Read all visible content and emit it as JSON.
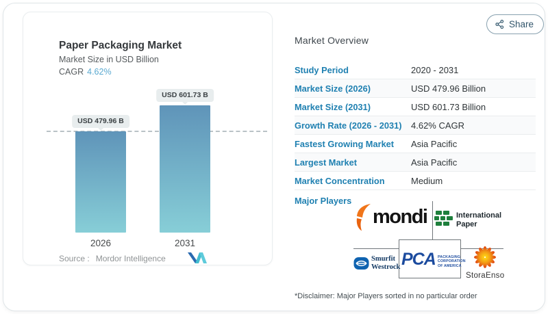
{
  "share": {
    "label": "Share"
  },
  "chart_card": {
    "title": "Paper Packaging Market",
    "subtitle": "Market Size in USD Billion",
    "cagr_label": "CAGR",
    "cagr_value": "4.62%",
    "source_label": "Source :",
    "source_value": "Mordor Intelligence"
  },
  "chart_data": {
    "type": "bar",
    "categories": [
      "2026",
      "2031"
    ],
    "values": [
      479.96,
      601.73
    ],
    "value_labels": [
      "USD 479.96 B",
      "USD 601.73 B"
    ],
    "title": "Paper Packaging Market",
    "subtitle": "Market Size in USD Billion",
    "cagr": "4.62%",
    "unit": "USD Billion",
    "ylim": [
      0,
      620
    ],
    "grid": false,
    "reference_line": {
      "style": "dashed",
      "value": 479.96
    },
    "bar_gradient": [
      "#5f94b9",
      "#87ced7"
    ]
  },
  "overview": {
    "title": "Market Overview",
    "rows": [
      {
        "label": "Study Period",
        "value": "2020 - 2031"
      },
      {
        "label": "Market Size (2026)",
        "value": "USD 479.96 Billion"
      },
      {
        "label": "Market Size (2031)",
        "value": "USD 601.73 Billion"
      },
      {
        "label": "Growth Rate (2026 - 2031)",
        "value": "4.62% CAGR"
      },
      {
        "label": "Fastest Growing Market",
        "value": "Asia Pacific"
      },
      {
        "label": "Largest Market",
        "value": "Asia Pacific"
      },
      {
        "label": "Market Concentration",
        "value": "Medium"
      }
    ],
    "major_players_label": "Major Players",
    "disclaimer": "*Disclaimer: Major Players sorted in no particular order",
    "players": {
      "mondi": "mondi",
      "ip_line1": "International",
      "ip_line2": "Paper",
      "sw_line1": "Smurfit",
      "sw_line2": "Westrock",
      "pca": "PCA",
      "pca_sub1": "PACKAGING",
      "pca_sub2": "CORPORATION",
      "pca_sub3": "OF AMERICA",
      "storaenso": "StoraEnso"
    }
  },
  "colors": {
    "accent_blue": "#1f80b1",
    "cagr_blue": "#5aa9d0",
    "bar_top": "#5f94b9",
    "bar_bottom": "#87ced7",
    "pill_bg": "#e8edee",
    "mondi_orange": "#f0751a",
    "ip_green": "#1e7f3c",
    "smurfit_blue": "#0f63b0",
    "pca_blue": "#1c4b9e",
    "storaenso_orange": "#ef6a10",
    "mordor_teal": "#43bdd0",
    "mordor_blue": "#2a6ab0"
  }
}
